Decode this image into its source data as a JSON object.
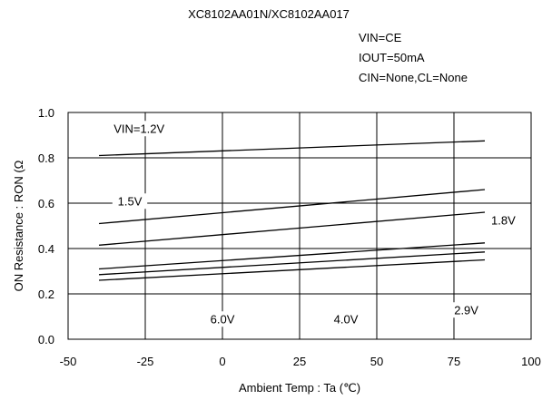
{
  "chart_data": {
    "type": "line",
    "title": "XC8102AA01N/XC8102AA017",
    "conditions": [
      "VIN=CE",
      "IOUT=50mA",
      "CIN=None,CL=None"
    ],
    "xlabel": "Ambient Temp : Ta (℃)",
    "ylabel": "ON Resistance : RON (Ω",
    "xlim": [
      -50,
      100
    ],
    "ylim": [
      0.0,
      1.0
    ],
    "x_ticks": [
      -50,
      -25,
      0,
      25,
      50,
      75,
      100
    ],
    "x_tick_labels": [
      "-50",
      "-25",
      "0",
      "25",
      "50",
      "75",
      "100"
    ],
    "y_ticks": [
      0.0,
      0.2,
      0.4,
      0.6,
      0.8,
      1.0
    ],
    "y_tick_labels": [
      "0.0",
      "0.2",
      "0.4",
      "0.6",
      "0.8",
      "1.0"
    ],
    "grid": true,
    "series": [
      {
        "name": "VIN=1.2V",
        "x": [
          -40,
          85
        ],
        "values": [
          0.81,
          0.875
        ]
      },
      {
        "name": "1.5V",
        "x": [
          -40,
          85
        ],
        "values": [
          0.51,
          0.66
        ]
      },
      {
        "name": "1.8V",
        "x": [
          -40,
          85
        ],
        "values": [
          0.415,
          0.56
        ]
      },
      {
        "x": [
          -40,
          85
        ],
        "values": [
          0.31,
          0.425
        ]
      },
      {
        "x": [
          -40,
          85
        ],
        "values": [
          0.285,
          0.385
        ]
      },
      {
        "x": [
          -40,
          85
        ],
        "values": [
          0.26,
          0.35
        ]
      }
    ],
    "annotations": [
      {
        "text": "VIN=1.2V",
        "x": -27,
        "y": 0.915
      },
      {
        "text": "1.5V",
        "x": -30,
        "y": 0.595
      },
      {
        "text": "1.8V",
        "x": 91,
        "y": 0.51
      },
      {
        "text": "6.0V",
        "x": 0,
        "y": 0.075
      },
      {
        "text": "4.0V",
        "x": 40,
        "y": 0.075
      },
      {
        "text": "2.9V",
        "x": 79,
        "y": 0.115
      }
    ]
  }
}
